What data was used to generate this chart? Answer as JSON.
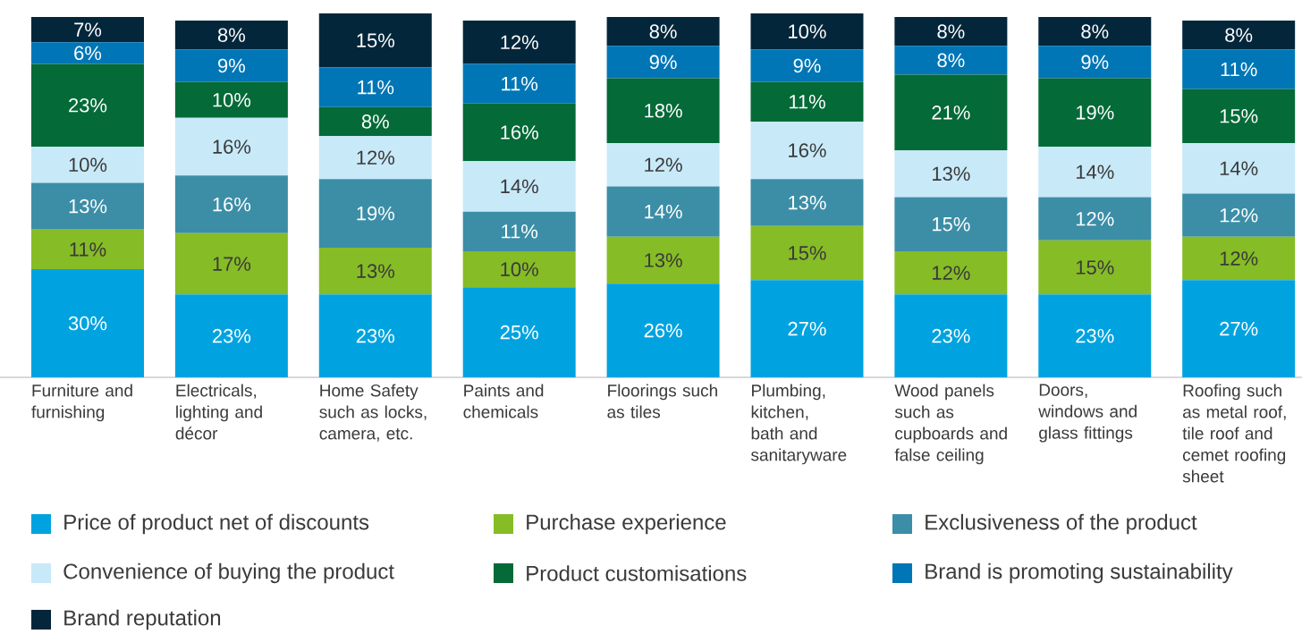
{
  "chart_data": {
    "type": "bar",
    "stacked": true,
    "legend": "bottom",
    "categories": [
      "Furniture and furnishing",
      "Electricals, lighting and décor",
      "Home Safety such as locks, camera, etc.",
      "Paints and chemicals",
      "Floorings such as tiles",
      "Plumbing, kitchen, bath and sanitaryware",
      "Wood panels such as cupboards and false ceiling",
      "Doors, windows and glass fittings",
      "Roofing such as metal roof, tile roof and cemet roofing sheet"
    ],
    "series": [
      {
        "name": "Price of product net of discounts",
        "color": "#00a3e0",
        "values": [
          30,
          23,
          23,
          25,
          26,
          27,
          23,
          23,
          27
        ],
        "value_labels": [
          "30%",
          "23%",
          "23%",
          "25%",
          "26%",
          "27%",
          "23%",
          "23%",
          "27%"
        ]
      },
      {
        "name": "Purchase experience",
        "color": "#86bc25",
        "values": [
          11,
          17,
          13,
          10,
          13,
          15,
          12,
          15,
          12
        ],
        "value_labels": [
          "11%",
          "17%",
          "13%",
          "10%",
          "13%",
          "15%",
          "12%",
          "15%",
          "12%"
        ]
      },
      {
        "name": "Exclusiveness of the product",
        "color": "#3c8ea7",
        "values": [
          13,
          16,
          19,
          11,
          14,
          13,
          15,
          12,
          12
        ],
        "value_labels": [
          "13%",
          "16%",
          "19%",
          "11%",
          "14%",
          "13%",
          "15%",
          "12%",
          "12%"
        ]
      },
      {
        "name": "Convenience of buying the product",
        "color": "#c8e9f8",
        "values": [
          10,
          16,
          12,
          14,
          12,
          16,
          13,
          14,
          14
        ],
        "value_labels": [
          "10%",
          "16%",
          "12%",
          "14%",
          "12%",
          "16%",
          "13%",
          "14%",
          "14%"
        ]
      },
      {
        "name": "Product customisations",
        "color": "#046a38",
        "values": [
          23,
          10,
          8,
          16,
          18,
          11,
          21,
          19,
          15
        ],
        "value_labels": [
          "23%",
          "10%",
          "8%",
          "16%",
          "18%",
          "11%",
          "21%",
          "19%",
          "15%"
        ]
      },
      {
        "name": "Brand is promoting sustainability",
        "color": "#0076b6",
        "values": [
          6,
          9,
          11,
          11,
          9,
          9,
          8,
          9,
          11
        ],
        "value_labels": [
          "6%",
          "9%",
          "11%",
          "11%",
          "9%",
          "9%",
          "8%",
          "9%",
          "11%"
        ]
      },
      {
        "name": "Brand reputation",
        "color": "#04263b",
        "values": [
          7,
          8,
          15,
          12,
          8,
          10,
          8,
          8,
          8
        ],
        "value_labels": [
          "7%",
          "8%",
          "15%",
          "12%",
          "8%",
          "10%",
          "8%",
          "8%",
          "8%"
        ]
      }
    ]
  }
}
